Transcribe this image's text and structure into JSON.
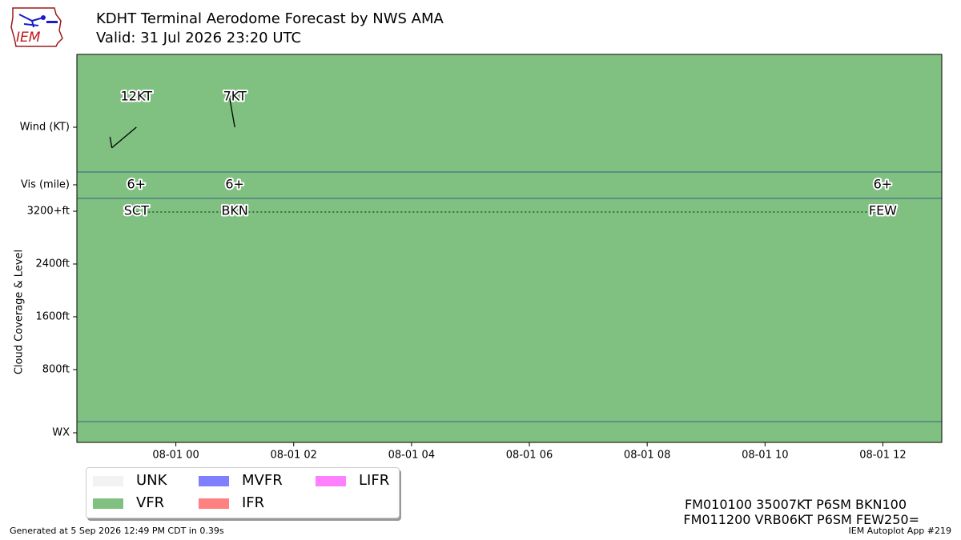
{
  "header": {
    "title": "KDHT Terminal Aerodome Forecast by NWS AMA",
    "valid": "Valid: 31 Jul 2026 23:20 UTC",
    "logo_text": "IEM"
  },
  "footer": {
    "generated": "Generated at 5 Sep 2026 12:49 PM CDT in 0.39s",
    "autoplot": "IEM Autoplot App #219",
    "taf_lines": [
      "FM010100 35007KT P6SM BKN100",
      "FM011200 VRB06KT P6SM FEW250="
    ]
  },
  "legend": [
    {
      "label": "UNK",
      "color": "#f2f2f2"
    },
    {
      "label": "VFR",
      "color": "#80c080"
    },
    {
      "label": "MVFR",
      "color": "#8080ff"
    },
    {
      "label": "IFR",
      "color": "#ff8080"
    },
    {
      "label": "LIFR",
      "color": "#ff80ff"
    }
  ],
  "chart_data": {
    "type": "timeline",
    "background_category": "VFR",
    "background_color": "#80c080",
    "x_ticks": [
      "08-01 00",
      "08-01 02",
      "08-01 04",
      "08-01 06",
      "08-01 08",
      "08-01 10",
      "08-01 12"
    ],
    "x_tick_hours": [
      0,
      2,
      4,
      6,
      8,
      10,
      12
    ],
    "xlim_hours": [
      -1.68,
      13.0
    ],
    "ylabel": "Cloud Coverage & Level",
    "rows": {
      "wind": "Wind (KT)",
      "vis": "Vis (mile)",
      "wx": "WX"
    },
    "cloud_ticks": [
      {
        "label": "3200+ft",
        "value": 3200
      },
      {
        "label": "2400ft",
        "value": 2400
      },
      {
        "label": "1600ft",
        "value": 1600
      },
      {
        "label": "800ft",
        "value": 800
      }
    ],
    "wind": [
      {
        "hour": -0.67,
        "label": "12KT",
        "direction_deg": 230
      },
      {
        "hour": 1.0,
        "label": "7KT",
        "direction_deg": 350
      }
    ],
    "visibility": [
      {
        "hour": -0.67,
        "label": "6+"
      },
      {
        "hour": 1.0,
        "label": "6+"
      },
      {
        "hour": 12.0,
        "label": "6+"
      }
    ],
    "clouds": [
      {
        "hour": -0.67,
        "label": "SCT"
      },
      {
        "hour": 1.0,
        "label": "BKN"
      },
      {
        "hour": 12.0,
        "label": "FEW"
      }
    ]
  }
}
